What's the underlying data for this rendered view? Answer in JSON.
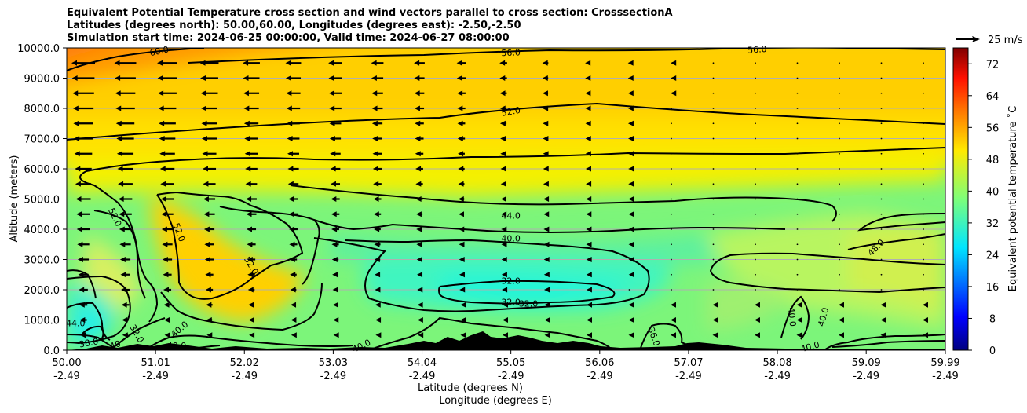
{
  "title_lines": [
    "Equivalent Potential Temperature cross section and wind vectors parallel to cross section: CrosssectionA",
    "Latitudes (degrees north): 50.00,60.00, Longitudes (degrees east): -2.50,-2.50",
    "Simulation start time: 2024-06-25 00:00:00, Valid time: 2024-06-27 08:00:00"
  ],
  "quiver_key_label": "25 m/s",
  "chart_data": {
    "type": "heatmap",
    "title": "Equivalent Potential Temperature cross section and wind vectors parallel to cross section: CrosssectionA",
    "ylabel": "Altitude (meters)",
    "xlabel": "Latitude (degrees N)",
    "xlabel2": "Longitude (degrees E)",
    "xlim": [
      50.0,
      59.99
    ],
    "ylim": [
      0,
      10000
    ],
    "x_ticks": [
      {
        "lat": "50.00",
        "lon": "-2.49",
        "value": 50.0
      },
      {
        "lat": "51.01",
        "lon": "-2.49",
        "value": 51.01
      },
      {
        "lat": "52.02",
        "lon": "-2.49",
        "value": 52.02
      },
      {
        "lat": "53.03",
        "lon": "-2.49",
        "value": 53.03
      },
      {
        "lat": "54.04",
        "lon": "-2.49",
        "value": 54.04
      },
      {
        "lat": "55.05",
        "lon": "-2.49",
        "value": 55.05
      },
      {
        "lat": "56.06",
        "lon": "-2.49",
        "value": 56.06
      },
      {
        "lat": "57.07",
        "lon": "-2.49",
        "value": 57.07
      },
      {
        "lat": "58.08",
        "lon": "-2.49",
        "value": 58.08
      },
      {
        "lat": "59.09",
        "lon": "-2.49",
        "value": 59.09
      },
      {
        "lat": "59.99",
        "lon": "-2.49",
        "value": 59.99
      }
    ],
    "y_ticks": [
      "0.0",
      "1000.0",
      "2000.0",
      "3000.0",
      "4000.0",
      "5000.0",
      "6000.0",
      "7000.0",
      "8000.0",
      "9000.0",
      "10000.0"
    ],
    "horizontal_grid": true,
    "colorbar": {
      "label": "Equivalent potential temperature ˚C",
      "range": [
        0,
        76
      ],
      "ticks": [
        "0",
        "8",
        "16",
        "24",
        "32",
        "40",
        "48",
        "56",
        "64",
        "72"
      ]
    },
    "contour_labels": [
      {
        "text": "60.0",
        "x": 51.05,
        "y": 9900,
        "rot": -12
      },
      {
        "text": "56.0",
        "x": 55.05,
        "y": 9850,
        "rot": -2
      },
      {
        "text": "56.0",
        "x": 57.85,
        "y": 9950,
        "rot": -4
      },
      {
        "text": "52.0",
        "x": 55.05,
        "y": 7900,
        "rot": -10
      },
      {
        "text": "52.0",
        "x": 50.55,
        "y": 4400,
        "rot": 65
      },
      {
        "text": "52.0",
        "x": 51.28,
        "y": 3900,
        "rot": 70
      },
      {
        "text": "52.0",
        "x": 52.1,
        "y": 2800,
        "rot": 60
      },
      {
        "text": "44.0",
        "x": 55.05,
        "y": 4450,
        "rot": 0
      },
      {
        "text": "40.0",
        "x": 55.05,
        "y": 3700,
        "rot": 0
      },
      {
        "text": "32.0",
        "x": 55.05,
        "y": 2300,
        "rot": 0
      },
      {
        "text": "32.0",
        "x": 55.05,
        "y": 1600,
        "rot": 0
      },
      {
        "text": "32.0",
        "x": 55.25,
        "y": 1550,
        "rot": 0
      },
      {
        "text": "48.0",
        "x": 59.2,
        "y": 3400,
        "rot": -45
      },
      {
        "text": "40.0",
        "x": 58.25,
        "y": 1100,
        "rot": 85
      },
      {
        "text": "40.0",
        "x": 58.6,
        "y": 1100,
        "rot": -75
      },
      {
        "text": "40.0",
        "x": 58.45,
        "y": 120,
        "rot": -15
      },
      {
        "text": "36.0",
        "x": 56.68,
        "y": 450,
        "rot": 70
      },
      {
        "text": "40.0",
        "x": 51.28,
        "y": 700,
        "rot": -40
      },
      {
        "text": "40.0",
        "x": 51.25,
        "y": 150,
        "rot": 0
      },
      {
        "text": "40.0",
        "x": 53.35,
        "y": 150,
        "rot": -25
      },
      {
        "text": "32.0",
        "x": 50.8,
        "y": 550,
        "rot": 60
      },
      {
        "text": "38.0",
        "x": 50.25,
        "y": 250,
        "rot": -10
      },
      {
        "text": "40",
        "x": 50.55,
        "y": 180,
        "rot": -20
      },
      {
        "text": "44.0",
        "x": 50.1,
        "y": 900,
        "rot": 0
      }
    ]
  }
}
